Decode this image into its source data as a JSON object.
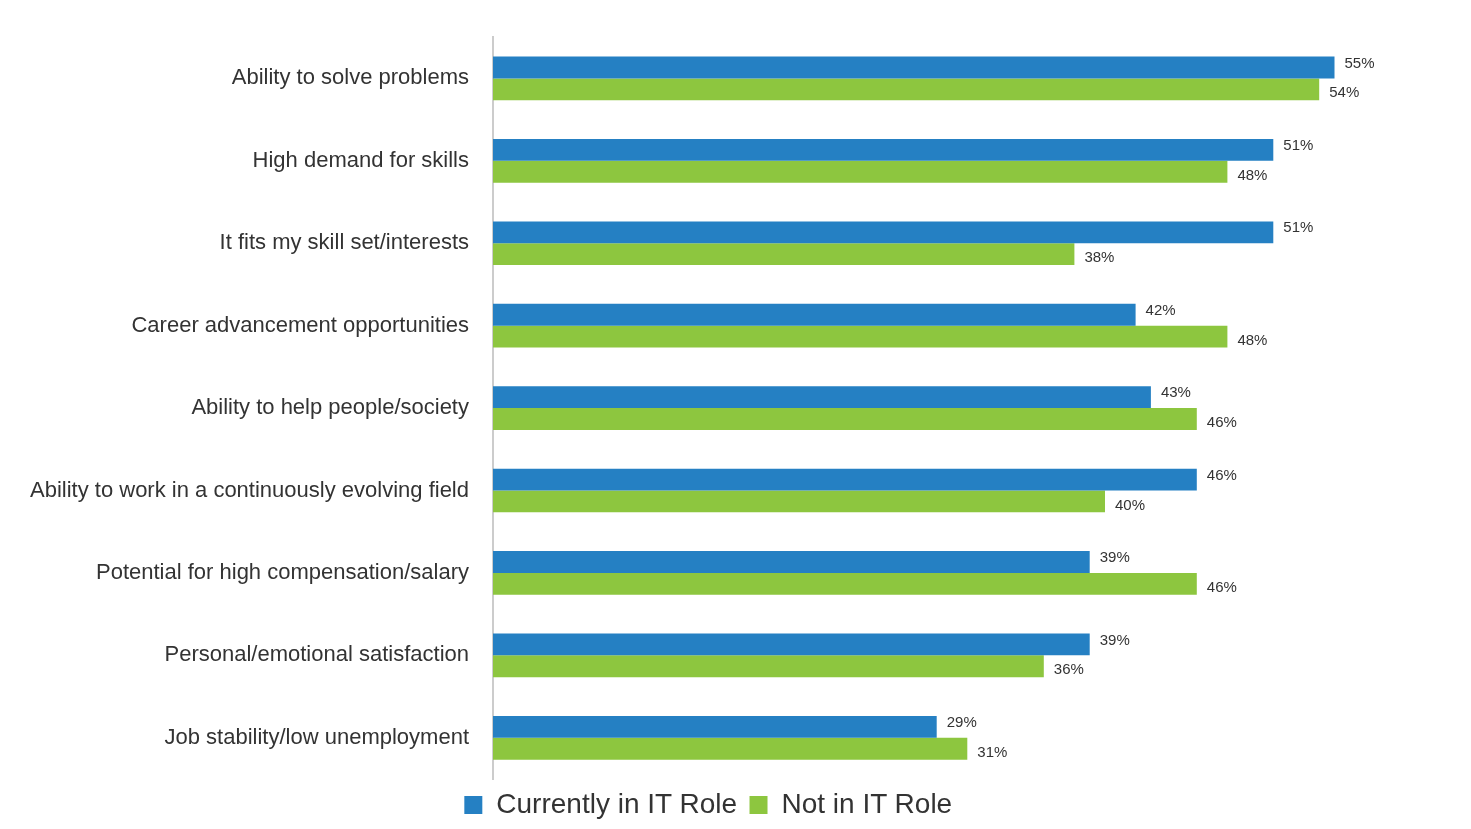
{
  "chart_data": {
    "type": "bar",
    "orientation": "horizontal",
    "categories": [
      "Ability to solve problems",
      "High demand for skills",
      "It fits my skill set/interests",
      "Career advancement opportunities",
      "Ability to help people/society",
      "Ability to work in a continuously evolving field",
      "Potential for high compensation/salary",
      "Personal/emotional satisfaction",
      "Job stability/low unemployment"
    ],
    "series": [
      {
        "name": "Currently in IT Role",
        "color": "#2580c3",
        "values": [
          55,
          51,
          51,
          42,
          43,
          46,
          39,
          39,
          29
        ],
        "value_labels": [
          "55%",
          "51%",
          "51%",
          "42%",
          "43%",
          "46%",
          "39%",
          "39%",
          "29%"
        ]
      },
      {
        "name": "Not in IT Role",
        "color": "#8dc63f",
        "values": [
          54,
          48,
          38,
          48,
          46,
          40,
          46,
          36,
          31
        ],
        "value_labels": [
          "54%",
          "48%",
          "38%",
          "48%",
          "46%",
          "40%",
          "46%",
          "36%",
          "31%"
        ]
      }
    ],
    "tick_labels": "y",
    "grid": false,
    "legend": "bottom"
  }
}
